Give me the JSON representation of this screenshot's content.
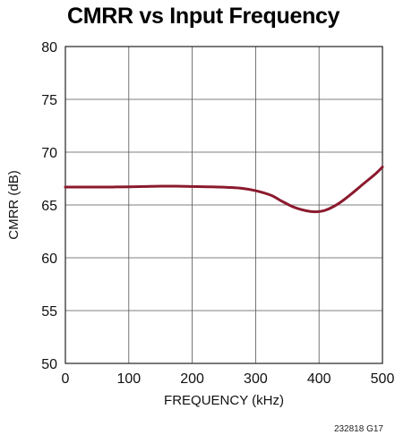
{
  "chart_data": {
    "type": "line",
    "title": "CMRR vs Input Frequency",
    "xlabel": "FREQUENCY (kHz)",
    "ylabel": "CMRR (dB)",
    "xlim": [
      0,
      500
    ],
    "ylim": [
      50,
      80
    ],
    "x_ticks": [
      "0",
      "100",
      "200",
      "300",
      "400",
      "500"
    ],
    "y_ticks": [
      "50",
      "55",
      "60",
      "65",
      "70",
      "75",
      "80"
    ],
    "grid": true,
    "legend": "none",
    "line_color": "#8b1a2e",
    "series": [
      {
        "x": [
          0,
          25,
          50,
          75,
          100,
          125,
          150,
          175,
          200,
          225,
          250,
          275,
          300,
          325,
          340,
          360,
          380,
          395,
          410,
          430,
          450,
          470,
          490,
          500
        ],
        "y": [
          66.7,
          66.7,
          66.7,
          66.7,
          66.72,
          66.75,
          66.78,
          66.78,
          66.75,
          66.72,
          66.68,
          66.6,
          66.35,
          65.9,
          65.4,
          64.8,
          64.45,
          64.35,
          64.5,
          65.1,
          66.0,
          67.0,
          68.0,
          68.6
        ]
      }
    ]
  },
  "figure_code": "232818 G17"
}
